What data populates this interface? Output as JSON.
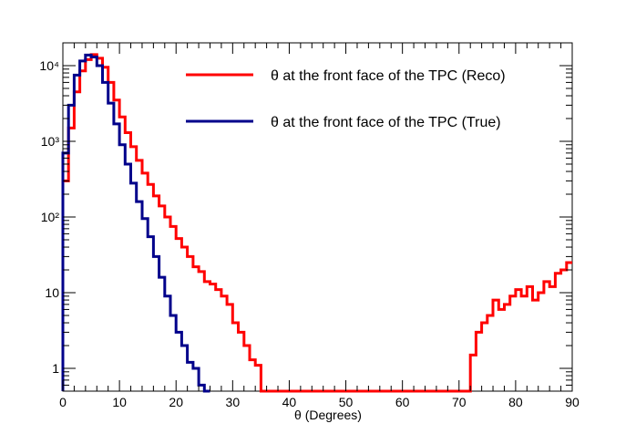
{
  "chart_data": {
    "type": "line",
    "style": "step-histogram",
    "title": "",
    "xlabel": "θ (Degrees)",
    "ylabel": "",
    "xlim": [
      0,
      90
    ],
    "ylim": [
      0.5,
      20000
    ],
    "yscale": "log",
    "grid": false,
    "legend_position": "top-right",
    "bin_width": 1,
    "x_ticks": [
      "0",
      "10",
      "20",
      "30",
      "40",
      "50",
      "60",
      "70",
      "80",
      "90"
    ],
    "y_ticks": [
      {
        "value": 1,
        "label": "1"
      },
      {
        "value": 10,
        "label": "10"
      },
      {
        "value": 100,
        "label": "10²"
      },
      {
        "value": 1000,
        "label": "10³"
      },
      {
        "value": 10000,
        "label": "10⁴"
      }
    ],
    "series": [
      {
        "name": "θ at the front face of the TPC (Reco)",
        "color": "#ff0000",
        "x": [
          0,
          1,
          2,
          3,
          4,
          5,
          6,
          7,
          8,
          9,
          10,
          11,
          12,
          13,
          14,
          15,
          16,
          17,
          18,
          19,
          20,
          21,
          22,
          23,
          24,
          25,
          26,
          27,
          28,
          29,
          30,
          31,
          32,
          33,
          34,
          35,
          36,
          37,
          38,
          39,
          40,
          41,
          42,
          43,
          44,
          45,
          46,
          47,
          48,
          49,
          50,
          51,
          52,
          53,
          54,
          55,
          56,
          57,
          58,
          59,
          60,
          61,
          62,
          63,
          64,
          65,
          66,
          67,
          68,
          69,
          70,
          71,
          72,
          73,
          74,
          75,
          76,
          77,
          78,
          79,
          80,
          81,
          82,
          83,
          84,
          85,
          86,
          87,
          88,
          89
        ],
        "values": [
          300,
          1500,
          4500,
          8500,
          12000,
          14000,
          12500,
          9500,
          6000,
          3500,
          2100,
          1300,
          850,
          560,
          380,
          270,
          190,
          140,
          100,
          75,
          52,
          40,
          30,
          22,
          19,
          14,
          13,
          11,
          9,
          7,
          4,
          3,
          2,
          1.3,
          1.1,
          0.5,
          0.5,
          0.5,
          0.5,
          0.5,
          0.5,
          0.5,
          0.5,
          0.5,
          0.5,
          0.5,
          0.5,
          0.5,
          0.5,
          0.5,
          0.5,
          0.5,
          0.5,
          0.5,
          0.5,
          0.5,
          0.5,
          0.5,
          0.5,
          0.5,
          0.5,
          0.5,
          0.5,
          0.5,
          0.5,
          0.5,
          0.5,
          0.5,
          0.5,
          0.5,
          0.5,
          0.5,
          1.5,
          3,
          4,
          5,
          8,
          6,
          7,
          9,
          11,
          9,
          12,
          8,
          10,
          14,
          12,
          18,
          20,
          25
        ]
      },
      {
        "name": "θ at the front face of the TPC (True)",
        "color": "#00008b",
        "x": [
          0,
          1,
          2,
          3,
          4,
          5,
          6,
          7,
          8,
          9,
          10,
          11,
          12,
          13,
          14,
          15,
          16,
          17,
          18,
          19,
          20,
          21,
          22,
          23,
          24,
          25
        ],
        "values": [
          700,
          3000,
          7500,
          11500,
          13800,
          13000,
          10000,
          6000,
          3200,
          1700,
          900,
          500,
          280,
          160,
          95,
          55,
          30,
          16,
          9,
          5,
          3,
          2,
          1.2,
          1,
          0.6,
          0.5
        ]
      }
    ]
  }
}
